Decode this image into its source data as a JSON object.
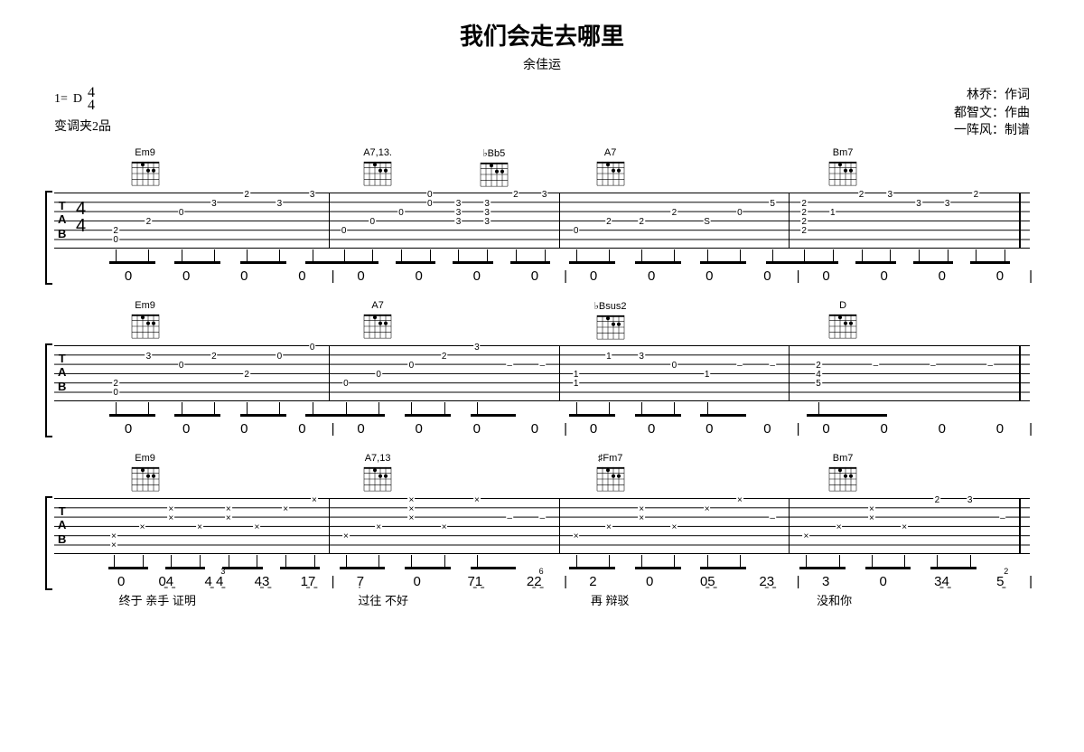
{
  "header": {
    "title": "我们会走去哪里",
    "artist": "余佳运"
  },
  "info": {
    "key_prefix": "1=",
    "key": "D",
    "time_top": "4",
    "time_bot": "4",
    "capo": "变调夹2品",
    "credits_lyricist": "林乔：作词",
    "credits_composer": "都智文：作曲",
    "credits_tab": "一阵风：制谱"
  },
  "systems": [
    {
      "chords": [
        "Em9",
        "A7,13.",
        "♭Bb5",
        "A7",
        "Bm7"
      ],
      "chord_positions": [
        0,
        1,
        1.5,
        2,
        3
      ],
      "show_timesig": true,
      "measures": [
        {
          "notes": [
            {
              "s6": "0",
              "s5": "2"
            },
            {
              "s4": "2"
            },
            {
              "s3": "0"
            },
            {
              "s2": "3"
            },
            {
              "s1": "2"
            },
            {
              "s2": "3"
            },
            {
              "s1": "3"
            }
          ]
        },
        {
          "notes": [
            {
              "s5": "0"
            },
            {
              "s4": "0"
            },
            {
              "s3": "0"
            },
            {
              "s2": "0",
              "s1": "0"
            },
            {
              "s4": "3",
              "s3": "3",
              "s2": "3"
            },
            {
              "s4": "3",
              "s3": "3",
              "s2": "3"
            },
            {
              "s1": "2"
            },
            {
              "s1": "3"
            }
          ]
        },
        {
          "notes": [
            {
              "s5": "0"
            },
            {
              "s4": "2",
              "tie": true
            },
            {
              "s4": "2"
            },
            {
              "s3": "2"
            },
            {
              "s4": "S"
            },
            {
              "s3": "0"
            },
            {
              "s2": "5"
            }
          ]
        },
        {
          "notes": [
            {
              "s5": "2",
              "s4": "2",
              "s3": "2",
              "s2": "2"
            },
            {
              "s3": "1"
            },
            {
              "s1": "2"
            },
            {
              "s1": "3"
            },
            {
              "s2": "3",
              "tie": true
            },
            {
              "s2": "3"
            },
            {
              "s1": "2"
            },
            {
              "": ""
            }
          ]
        }
      ],
      "jianpu": [
        [
          "0",
          "0",
          "0",
          "0"
        ],
        [
          "0",
          "0",
          "0",
          "0"
        ],
        [
          "0",
          "0",
          "0",
          "0"
        ],
        [
          "0",
          "0",
          "0",
          "0"
        ]
      ]
    },
    {
      "chords": [
        "Em9",
        "A7",
        "♭Bsus2",
        "D"
      ],
      "chord_positions": [
        0,
        1,
        2,
        3
      ],
      "show_timesig": false,
      "measures": [
        {
          "notes": [
            {
              "s6": "0",
              "s5": "2"
            },
            {
              "s2": "3"
            },
            {
              "s3": "0"
            },
            {
              "s2": "2"
            },
            {
              "s4": "2"
            },
            {
              "s2": "0"
            },
            {
              "s1": "0"
            }
          ]
        },
        {
          "notes": [
            {
              "s5": "0"
            },
            {
              "s4": "0"
            },
            {
              "s3": "0"
            },
            {
              "s2": "2"
            },
            {
              "s1": "3"
            },
            {
              "dash": true
            },
            {
              "dash": true
            }
          ]
        },
        {
          "notes": [
            {
              "s5": "1",
              "s4": "1"
            },
            {
              "s2": "1"
            },
            {
              "s2": "3"
            },
            {
              "s3": "0"
            },
            {
              "s4": "1"
            },
            {
              "dash": true
            },
            {
              "dash": true
            }
          ]
        },
        {
          "notes": [
            {
              "s5": "5",
              "s4": "4",
              "s3": "2"
            },
            {
              "dash": true
            },
            {
              "dash": true
            },
            {
              "dash": true
            }
          ]
        }
      ],
      "jianpu": [
        [
          "0",
          "0",
          "0",
          "0"
        ],
        [
          "0",
          "0",
          "0",
          "0"
        ],
        [
          "0",
          "0",
          "0",
          "0"
        ],
        [
          "0",
          "0",
          "0",
          "0"
        ]
      ]
    },
    {
      "chords": [
        "Em9",
        "A7,13",
        "♯Fm7",
        "Bm7"
      ],
      "chord_positions": [
        0,
        1,
        2,
        3
      ],
      "show_timesig": false,
      "x_notes": true,
      "measures": [
        {
          "notes": [
            {
              "s6": "×",
              "s5": "×"
            },
            {
              "s4": "×"
            },
            {
              "s3": "×",
              "s2": "×"
            },
            {
              "s4": "×"
            },
            {
              "s3": "×",
              "s2": "×"
            },
            {
              "s4": "×"
            },
            {
              "s2": "×"
            },
            {
              "s1": "×"
            }
          ]
        },
        {
          "notes": [
            {
              "s5": "×"
            },
            {
              "s4": "×"
            },
            {
              "s3": "×",
              "s2": "×",
              "s1": "×"
            },
            {
              "s4": "×"
            },
            {
              "s1": "×"
            },
            {
              "dash": true
            },
            {
              "dash": true
            }
          ]
        },
        {
          "notes": [
            {
              "s5": "×"
            },
            {
              "s4": "×"
            },
            {
              "s3": "×",
              "s2": "×"
            },
            {
              "s4": "×"
            },
            {
              "s2": "×"
            },
            {
              "s1": "×"
            },
            {
              "dash": true
            }
          ]
        },
        {
          "notes": [
            {
              "s5": "×"
            },
            {
              "s4": "×"
            },
            {
              "s3": "×",
              "s2": "×"
            },
            {
              "s4": "×"
            },
            {
              "s1": "2"
            },
            {
              "s1": "3"
            },
            {
              "dash": true
            }
          ]
        }
      ],
      "jianpu_lyrics": [
        {
          "notes": [
            "0",
            "0̱4̱",
            "4̱ 4̱",
            "4̱3̱",
            "1̱7̱"
          ],
          "accents": {
            "2": "3",
            "5": "7"
          },
          "lyric": "      终于 亲手 证明"
        },
        {
          "notes": [
            "7̣",
            "0",
            "7̱1̱",
            "2̱2̱"
          ],
          "accents": {
            "3": "6",
            "4": "1"
          },
          "lyric": "        过往 不好"
        },
        {
          "notes": [
            "2",
            "0",
            "0̱5̱",
            "2̱3̱"
          ],
          "accents": {
            "4": "2"
          },
          "lyric": "        再 辩驳"
        },
        {
          "notes": [
            "3",
            "0",
            "3̱4̱",
            "5̱"
          ],
          "accents": {
            "3": "2",
            "4": "4"
          },
          "lyric": "      没和你"
        }
      ]
    }
  ]
}
